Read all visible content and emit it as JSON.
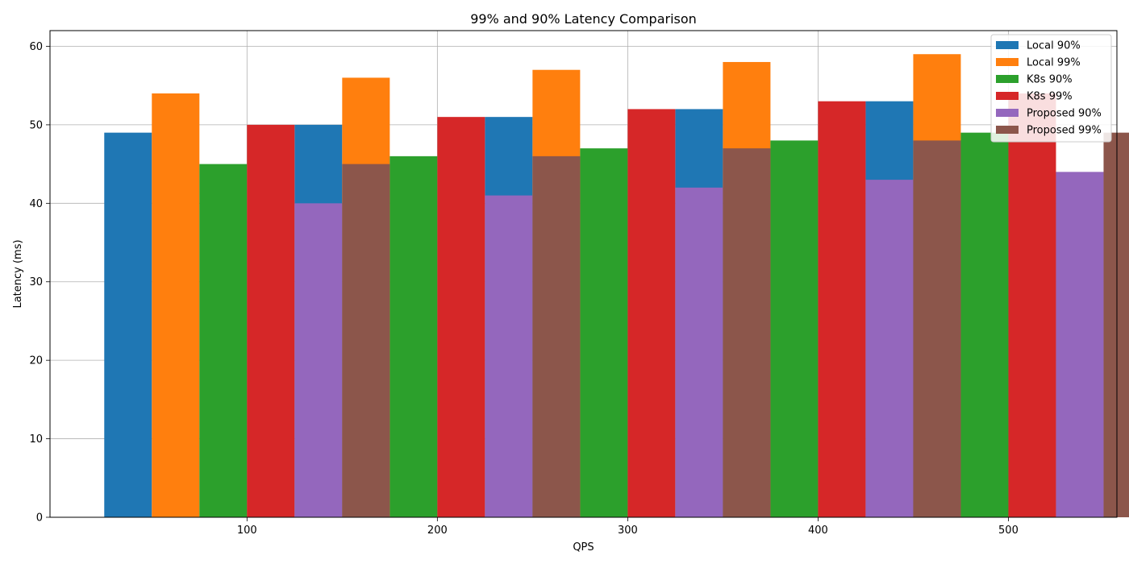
{
  "chart_data": {
    "type": "bar",
    "title": "99% and 90% Latency Comparison",
    "xlabel": "QPS",
    "ylabel": "Latency (ms)",
    "x": [
      100,
      200,
      300,
      400,
      500
    ],
    "xlim": [
      -3.5,
      557
    ],
    "ylim": [
      0,
      62
    ],
    "yticks": [
      0,
      10,
      20,
      30,
      40,
      50,
      60
    ],
    "bar_width": 25,
    "grid": true,
    "legend_position": "top-right",
    "series": [
      {
        "name": "Local 90%",
        "color": "#1f77b4",
        "offset": -2.5,
        "values": [
          49,
          50,
          51,
          52,
          53
        ]
      },
      {
        "name": "Local 99%",
        "color": "#ff7f0e",
        "offset": -1.5,
        "values": [
          54,
          56,
          57,
          58,
          59
        ]
      },
      {
        "name": "K8s 90%",
        "color": "#2ca02c",
        "offset": -0.5,
        "values": [
          45,
          46,
          47,
          48,
          49
        ]
      },
      {
        "name": "K8s 99%",
        "color": "#d62728",
        "offset": 0.5,
        "values": [
          50,
          51,
          52,
          53,
          54
        ]
      },
      {
        "name": "Proposed 90%",
        "color": "#9467bd",
        "offset": 1.5,
        "values": [
          40,
          41,
          42,
          43,
          44
        ]
      },
      {
        "name": "Proposed 99%",
        "color": "#8c564b",
        "offset": 2.5,
        "values": [
          45,
          46,
          47,
          48,
          49
        ]
      }
    ]
  }
}
